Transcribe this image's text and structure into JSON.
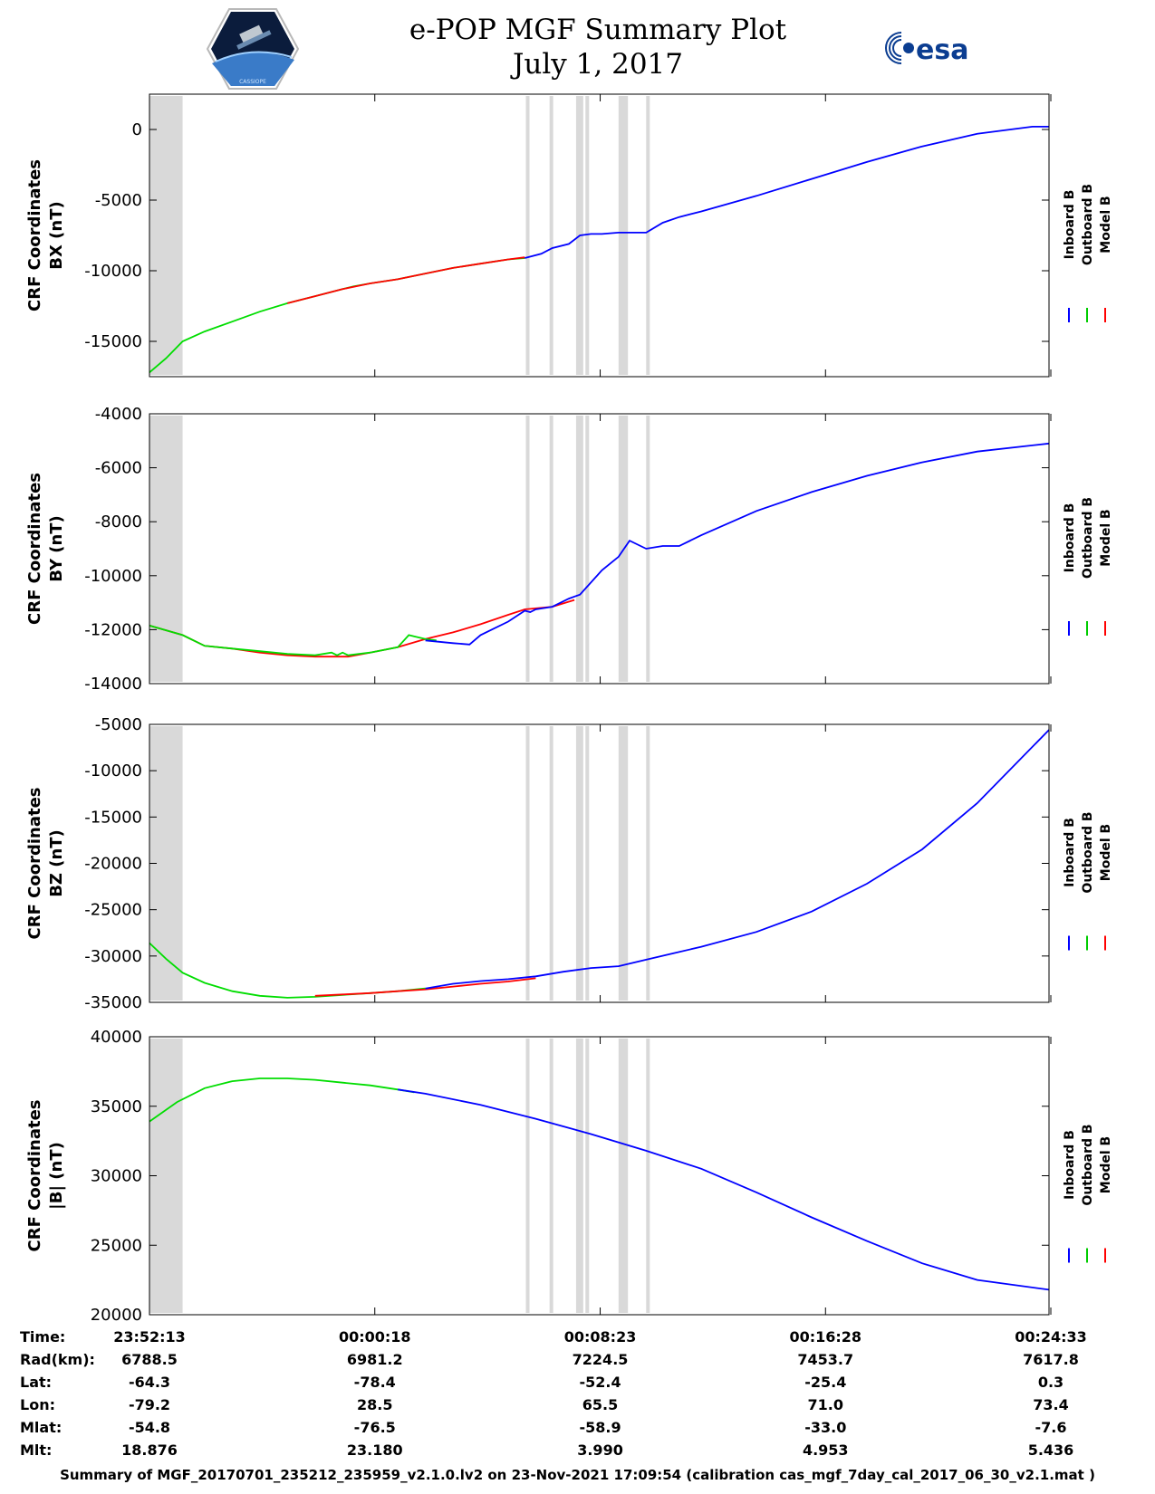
{
  "header": {
    "title": "e-POP MGF Summary Plot",
    "date": "July 1, 2017",
    "left_logo": "cassiope-logo",
    "left_logo_text": "CASSIOPE",
    "right_logo": "esa-logo",
    "right_logo_text": "esa"
  },
  "legend": {
    "entries": [
      {
        "name": "Inboard B",
        "color": "#0000ff"
      },
      {
        "name": "Outboard B",
        "color": "#00cc00"
      },
      {
        "name": "Model B",
        "color": "#ff0000"
      }
    ]
  },
  "colors": {
    "inboard": "#0000ff",
    "outboard": "#00dd00",
    "model": "#ff0000",
    "gap": "#d9d9d9"
  },
  "gap_intervals": [
    [
      0,
      0.6
    ],
    [
      6.82,
      6.87
    ],
    [
      7.25,
      7.31
    ],
    [
      7.73,
      7.86
    ],
    [
      7.9,
      7.96
    ],
    [
      8.5,
      8.67
    ],
    [
      9.0,
      9.05
    ]
  ],
  "chart_data": [
    {
      "type": "line",
      "ylabel": [
        "CRF Coordinates",
        "BX (nT)"
      ],
      "ylim": [
        -17500,
        2500
      ],
      "yticks": [
        0,
        -5000,
        -10000,
        -15000
      ],
      "ytick_labels": [
        "0",
        "-5000",
        "-10000",
        "-15000"
      ],
      "series": [
        {
          "name": "Outboard B",
          "color": "#00dd00",
          "x": [
            0,
            0.3,
            0.6,
            1.0,
            1.5,
            2.0,
            2.5,
            3.0,
            3.5,
            3.7,
            4.0,
            4.5,
            5.0,
            5.5,
            6.0,
            6.5,
            6.8
          ],
          "y": [
            -17200,
            -16200,
            -15000,
            -14300,
            -13600,
            -12900,
            -12300,
            -11800,
            -11300,
            -11100,
            -10900,
            -10600,
            -10200,
            -9800,
            -9500,
            -9200,
            -9100
          ]
        },
        {
          "name": "Model B",
          "color": "#ff0000",
          "x": [
            2.5,
            3.0,
            3.5,
            4.0,
            4.5,
            5.0,
            5.5,
            6.0,
            6.5,
            6.8
          ],
          "y": [
            -12300,
            -11800,
            -11300,
            -10900,
            -10600,
            -10200,
            -9800,
            -9500,
            -9200,
            -9050
          ]
        },
        {
          "name": "Inboard B",
          "color": "#0000ff",
          "x": [
            6.8,
            7.1,
            7.3,
            7.6,
            7.8,
            8.0,
            8.2,
            8.5,
            8.8,
            9.0,
            9.3,
            9.6,
            10.0,
            11.0,
            12.0,
            13.0,
            14.0,
            15.0,
            16.0,
            16.3
          ],
          "y": [
            -9100,
            -8800,
            -8400,
            -8100,
            -7500,
            -7400,
            -7400,
            -7300,
            -7300,
            -7300,
            -6600,
            -6200,
            -5800,
            -4700,
            -3500,
            -2300,
            -1200,
            -300,
            200,
            200
          ]
        }
      ]
    },
    {
      "type": "line",
      "ylabel": [
        "CRF Coordinates",
        "BY (nT)"
      ],
      "ylim": [
        -14000,
        -4000
      ],
      "yticks": [
        -4000,
        -6000,
        -8000,
        -10000,
        -12000,
        -14000
      ],
      "ytick_labels": [
        "-4000",
        "-6000",
        "-8000",
        "-10000",
        "-12000",
        "-14000"
      ],
      "series": [
        {
          "name": "Model B",
          "color": "#ff0000",
          "x": [
            0,
            0.6,
            1.0,
            1.5,
            2.0,
            2.5,
            3.0,
            3.6,
            4.0,
            4.5,
            5.0,
            5.5,
            6.0,
            6.5,
            6.8,
            7.3,
            7.7
          ],
          "y": [
            -11850,
            -12200,
            -12600,
            -12700,
            -12850,
            -12950,
            -13000,
            -13000,
            -12850,
            -12650,
            -12350,
            -12100,
            -11800,
            -11450,
            -11250,
            -11150,
            -10900
          ]
        },
        {
          "name": "Outboard B",
          "color": "#00dd00",
          "x": [
            0,
            0.6,
            1.0,
            1.5,
            2.0,
            2.5,
            3.0,
            3.3,
            3.4,
            3.5,
            3.6,
            4.0,
            4.5,
            4.7,
            4.8,
            5.0,
            5.2
          ],
          "y": [
            -11850,
            -12200,
            -12600,
            -12700,
            -12800,
            -12900,
            -12950,
            -12850,
            -12950,
            -12850,
            -12950,
            -12850,
            -12650,
            -12200,
            -12250,
            -12350,
            -12400
          ]
        },
        {
          "name": "Inboard B",
          "color": "#0000ff",
          "x": [
            5.0,
            5.5,
            5.8,
            6.0,
            6.2,
            6.5,
            6.8,
            6.9,
            7.0,
            7.3,
            7.6,
            7.8,
            8.2,
            8.5,
            8.7,
            9.0,
            9.3,
            9.6,
            10.0,
            11.0,
            12.0,
            13.0,
            14.0,
            15.0,
            16.3
          ],
          "y": [
            -12400,
            -12500,
            -12550,
            -12200,
            -12000,
            -11700,
            -11300,
            -11350,
            -11250,
            -11150,
            -10850,
            -10700,
            -9800,
            -9300,
            -8700,
            -9000,
            -8900,
            -8900,
            -8500,
            -7600,
            -6900,
            -6300,
            -5800,
            -5400,
            -5100
          ]
        }
      ]
    },
    {
      "type": "line",
      "ylabel": [
        "CRF Coordinates",
        "BZ (nT)"
      ],
      "ylim": [
        -35000,
        -5000
      ],
      "yticks": [
        -5000,
        -10000,
        -15000,
        -20000,
        -25000,
        -30000,
        -35000
      ],
      "ytick_labels": [
        "-5000",
        "-10000",
        "-15000",
        "-20000",
        "-25000",
        "-30000",
        "-35000"
      ],
      "series": [
        {
          "name": "Outboard B",
          "color": "#00dd00",
          "x": [
            0,
            0.3,
            0.6,
            1.0,
            1.5,
            2.0,
            2.5,
            3.0,
            3.5,
            4.0,
            4.5,
            5.0
          ],
          "y": [
            -28600,
            -30300,
            -31800,
            -32900,
            -33800,
            -34300,
            -34500,
            -34400,
            -34200,
            -34000,
            -33800,
            -33500
          ]
        },
        {
          "name": "Model B",
          "color": "#ff0000",
          "x": [
            3.0,
            3.5,
            4.0,
            4.5,
            5.0,
            5.5,
            6.0,
            6.5,
            7.0
          ],
          "y": [
            -34300,
            -34150,
            -34000,
            -33800,
            -33600,
            -33300,
            -33000,
            -32750,
            -32400
          ]
        },
        {
          "name": "Inboard B",
          "color": "#0000ff",
          "x": [
            5.0,
            5.5,
            6.0,
            6.5,
            7.0,
            7.5,
            8.0,
            8.5,
            9.0,
            9.5,
            10.0,
            11.0,
            12.0,
            13.0,
            14.0,
            15.0,
            16.3
          ],
          "y": [
            -33500,
            -33000,
            -32700,
            -32500,
            -32200,
            -31700,
            -31300,
            -31100,
            -30400,
            -29700,
            -29000,
            -27400,
            -25200,
            -22200,
            -18500,
            -13500,
            -5600
          ]
        }
      ]
    },
    {
      "type": "line",
      "ylabel": [
        "CRF Coordinates",
        "|B| (nT)"
      ],
      "ylim": [
        20000,
        40000
      ],
      "yticks": [
        40000,
        35000,
        30000,
        25000,
        20000
      ],
      "ytick_labels": [
        "40000",
        "35000",
        "30000",
        "25000",
        "20000"
      ],
      "series": [
        {
          "name": "Outboard B",
          "color": "#00dd00",
          "x": [
            0,
            0.5,
            1.0,
            1.5,
            2.0,
            2.5,
            3.0,
            3.5,
            4.0,
            4.5,
            4.8
          ],
          "y": [
            33900,
            35300,
            36300,
            36800,
            37000,
            37000,
            36900,
            36700,
            36500,
            36200,
            36000
          ]
        },
        {
          "name": "Inboard B",
          "color": "#0000ff",
          "x": [
            4.5,
            5.0,
            6.0,
            7.0,
            8.0,
            9.0,
            10.0,
            11.0,
            12.0,
            13.0,
            14.0,
            15.0,
            16.3
          ],
          "y": [
            36200,
            35900,
            35100,
            34100,
            33000,
            31800,
            30500,
            28800,
            27000,
            25300,
            23700,
            22500,
            21800
          ]
        }
      ]
    }
  ],
  "xaxis": {
    "xlim": [
      0,
      16.3
    ],
    "ticks": [
      0,
      4.083,
      8.167,
      12.25,
      16.333
    ],
    "rows": [
      {
        "label": "Time:",
        "values": [
          "23:52:13",
          "00:00:18",
          "00:08:23",
          "00:16:28",
          "00:24:33"
        ]
      },
      {
        "label": "Rad(km):",
        "values": [
          "6788.5",
          "6981.2",
          "7224.5",
          "7453.7",
          "7617.8"
        ]
      },
      {
        "label": "Lat:",
        "values": [
          "-64.3",
          "-78.4",
          "-52.4",
          "-25.4",
          "0.3"
        ]
      },
      {
        "label": "Lon:",
        "values": [
          "-79.2",
          "28.5",
          "65.5",
          "71.0",
          "73.4"
        ]
      },
      {
        "label": "Mlat:",
        "values": [
          "-54.8",
          "-76.5",
          "-58.9",
          "-33.0",
          "-7.6"
        ]
      },
      {
        "label": "Mlt:",
        "values": [
          "18.876",
          "23.180",
          "3.990",
          "4.953",
          "5.436"
        ]
      }
    ]
  },
  "footer": "Summary of MGF_20170701_235212_235959_v2.1.0.lv2 on 23-Nov-2021 17:09:54 (calibration cas_mgf_7day_cal_2017_06_30_v2.1.mat )"
}
